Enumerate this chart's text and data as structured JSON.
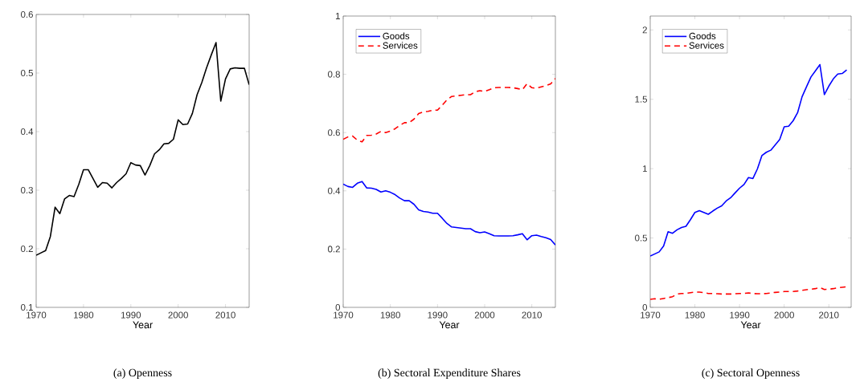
{
  "chart_data": [
    {
      "type": "line",
      "xlabel": "Year",
      "annotations": [
        "(a) Openness"
      ],
      "xlim": [
        1970,
        2015
      ],
      "ylim": [
        0.1,
        0.6
      ],
      "xticks": [
        1970,
        1980,
        1990,
        2000,
        2010
      ],
      "yticks": [
        0.1,
        0.2,
        0.3,
        0.4,
        0.5,
        0.6
      ],
      "x": [
        1970,
        1971,
        1972,
        1973,
        1974,
        1975,
        1976,
        1977,
        1978,
        1979,
        1980,
        1981,
        1982,
        1983,
        1984,
        1985,
        1986,
        1987,
        1988,
        1989,
        1990,
        1991,
        1992,
        1993,
        1994,
        1995,
        1996,
        1997,
        1998,
        1999,
        2000,
        2001,
        2002,
        2003,
        2004,
        2005,
        2006,
        2007,
        2008,
        2009,
        2010,
        2011,
        2012,
        2013,
        2014,
        2015
      ],
      "series": [
        {
          "color": "#000000",
          "line_style": "solid",
          "values": [
            0.189,
            0.193,
            0.197,
            0.221,
            0.271,
            0.26,
            0.285,
            0.291,
            0.289,
            0.31,
            0.335,
            0.335,
            0.32,
            0.305,
            0.313,
            0.312,
            0.304,
            0.313,
            0.32,
            0.328,
            0.347,
            0.343,
            0.342,
            0.326,
            0.342,
            0.362,
            0.369,
            0.379,
            0.38,
            0.387,
            0.42,
            0.412,
            0.413,
            0.431,
            0.463,
            0.484,
            0.509,
            0.531,
            0.552,
            0.452,
            0.49,
            0.507,
            0.509,
            0.508,
            0.508,
            0.48
          ]
        }
      ]
    },
    {
      "type": "line",
      "xlabel": "Year",
      "annotations": [
        "(b) Sectoral Expenditure Shares"
      ],
      "legend": "top left",
      "xlim": [
        1970,
        2015
      ],
      "ylim": [
        0,
        1
      ],
      "xticks": [
        1970,
        1980,
        1990,
        2000,
        2010
      ],
      "yticks": [
        0,
        0.2,
        0.4,
        0.6,
        0.8,
        1
      ],
      "x": [
        1970,
        1971,
        1972,
        1973,
        1974,
        1975,
        1976,
        1977,
        1978,
        1979,
        1980,
        1981,
        1982,
        1983,
        1984,
        1985,
        1986,
        1987,
        1988,
        1989,
        1990,
        1991,
        1992,
        1993,
        1994,
        1995,
        1996,
        1997,
        1998,
        1999,
        2000,
        2001,
        2002,
        2003,
        2004,
        2005,
        2006,
        2007,
        2008,
        2009,
        2010,
        2011,
        2012,
        2013,
        2014,
        2015
      ],
      "series": [
        {
          "name": "Goods",
          "color": "#0000ff",
          "line_style": "solid",
          "values": [
            0.423,
            0.415,
            0.412,
            0.426,
            0.432,
            0.41,
            0.409,
            0.405,
            0.396,
            0.4,
            0.395,
            0.387,
            0.375,
            0.366,
            0.366,
            0.354,
            0.335,
            0.329,
            0.327,
            0.323,
            0.323,
            0.306,
            0.288,
            0.276,
            0.274,
            0.272,
            0.27,
            0.27,
            0.26,
            0.256,
            0.259,
            0.253,
            0.246,
            0.245,
            0.245,
            0.245,
            0.246,
            0.249,
            0.253,
            0.232,
            0.246,
            0.248,
            0.243,
            0.239,
            0.233,
            0.214
          ]
        },
        {
          "name": "Services",
          "color": "#ff0000",
          "line_style": "dashed",
          "values": [
            0.577,
            0.585,
            0.588,
            0.574,
            0.568,
            0.59,
            0.591,
            0.595,
            0.604,
            0.6,
            0.605,
            0.613,
            0.625,
            0.634,
            0.634,
            0.646,
            0.665,
            0.671,
            0.673,
            0.677,
            0.677,
            0.694,
            0.712,
            0.724,
            0.726,
            0.728,
            0.73,
            0.73,
            0.74,
            0.744,
            0.741,
            0.747,
            0.754,
            0.755,
            0.755,
            0.755,
            0.754,
            0.751,
            0.747,
            0.768,
            0.754,
            0.752,
            0.757,
            0.761,
            0.767,
            0.786
          ]
        }
      ]
    },
    {
      "type": "line",
      "xlabel": "Year",
      "annotations": [
        "(c) Sectoral Openness"
      ],
      "legend": "top left",
      "xlim": [
        1970,
        2015
      ],
      "ylim": [
        0,
        2.1
      ],
      "xticks": [
        1970,
        1980,
        1990,
        2000,
        2010
      ],
      "yticks": [
        0,
        0.5,
        1,
        1.5,
        2
      ],
      "x": [
        1970,
        1971,
        1972,
        1973,
        1974,
        1975,
        1976,
        1977,
        1978,
        1979,
        1980,
        1981,
        1982,
        1983,
        1984,
        1985,
        1986,
        1987,
        1988,
        1989,
        1990,
        1991,
        1992,
        1993,
        1994,
        1995,
        1996,
        1997,
        1998,
        1999,
        2000,
        2001,
        2002,
        2003,
        2004,
        2005,
        2006,
        2007,
        2008,
        2009,
        2010,
        2011,
        2012,
        2013,
        2014
      ],
      "series": [
        {
          "name": "Goods",
          "color": "#0000ff",
          "line_style": "solid",
          "values": [
            0.37,
            0.385,
            0.4,
            0.443,
            0.545,
            0.534,
            0.559,
            0.576,
            0.584,
            0.632,
            0.684,
            0.697,
            0.684,
            0.671,
            0.694,
            0.715,
            0.732,
            0.767,
            0.79,
            0.825,
            0.859,
            0.886,
            0.936,
            0.929,
            0.998,
            1.094,
            1.118,
            1.133,
            1.171,
            1.21,
            1.302,
            1.306,
            1.345,
            1.403,
            1.518,
            1.59,
            1.661,
            1.705,
            1.75,
            1.534,
            1.595,
            1.647,
            1.682,
            1.686,
            1.711
          ]
        },
        {
          "name": "Services",
          "color": "#ff0000",
          "line_style": "dashed",
          "values": [
            0.058,
            0.062,
            0.058,
            0.064,
            0.07,
            0.077,
            0.096,
            0.1,
            0.1,
            0.106,
            0.11,
            0.11,
            0.106,
            0.1,
            0.1,
            0.098,
            0.096,
            0.096,
            0.096,
            0.098,
            0.1,
            0.1,
            0.104,
            0.1,
            0.098,
            0.098,
            0.1,
            0.104,
            0.108,
            0.11,
            0.114,
            0.114,
            0.114,
            0.118,
            0.123,
            0.127,
            0.131,
            0.135,
            0.143,
            0.129,
            0.131,
            0.135,
            0.141,
            0.145,
            0.148
          ]
        }
      ]
    }
  ]
}
